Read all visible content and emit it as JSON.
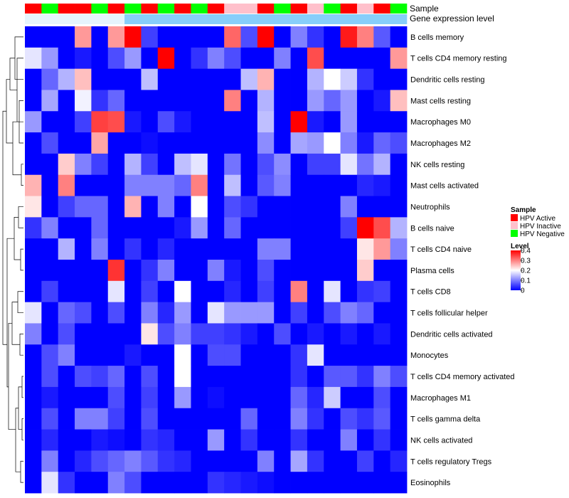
{
  "chart_data": {
    "type": "heatmap",
    "title": "",
    "annotations": {
      "sample_label": "Sample",
      "gene_label": "Gene expression level",
      "sample_groups": [
        "HPV Active",
        "HPV Negative",
        "HPV Active",
        "HPV Active",
        "HPV Negative",
        "HPV Active",
        "HPV Negative",
        "HPV Active",
        "HPV Negative",
        "HPV Active",
        "HPV Negative",
        "HPV Active",
        "HPV Inactive",
        "HPV Inactive",
        "HPV Active",
        "HPV Negative",
        "HPV Active",
        "HPV Inactive",
        "HPV Negative",
        "HPV Active",
        "HPV Inactive",
        "HPV Active",
        "HPV Negative"
      ],
      "gene_levels": [
        "low",
        "low",
        "low",
        "low",
        "low",
        "low",
        "high",
        "high",
        "high",
        "high",
        "high",
        "high",
        "high",
        "high",
        "high",
        "high",
        "high",
        "high",
        "high",
        "high",
        "high",
        "high",
        "high"
      ]
    },
    "rows": [
      "B cells memory",
      "T cells CD4 memory resting",
      "Dendritic cells resting",
      "Mast cells resting",
      "Macrophages M0",
      "Macrophages M2",
      "NK cells resting",
      "Mast cells activated",
      "Neutrophils",
      "B cells naive",
      "T cells CD4 naive",
      "Plasma cells",
      "T cells CD8",
      "T cells follicular helper",
      "Dendritic cells activated",
      "Monocytes",
      "T cells CD4 memory activated",
      "Macrophages M1",
      "T cells gamma delta",
      "NK cells activated",
      "T cells regulatory  Tregs",
      "Eosinophils"
    ],
    "values": [
      [
        0,
        0,
        0,
        0.28,
        0,
        0.28,
        0.4,
        0.05,
        0,
        0,
        0,
        0,
        0.32,
        0.06,
        0.4,
        0,
        0.1,
        0.04,
        0,
        0.38,
        0.3,
        0.07,
        0
      ],
      [
        0.18,
        0.12,
        0,
        0.02,
        0,
        0.06,
        0.12,
        0,
        0.4,
        0,
        0.04,
        0.1,
        0.06,
        0,
        0,
        0.1,
        0,
        0.34,
        0,
        0,
        0,
        0,
        0.28
      ],
      [
        0,
        0.08,
        0.14,
        0.25,
        0,
        0,
        0,
        0.15,
        0,
        0,
        0,
        0,
        0,
        0.15,
        0.26,
        0,
        0,
        0.14,
        0.2,
        0.16,
        0.04,
        0,
        0
      ],
      [
        0,
        0.13,
        0,
        0.19,
        0.04,
        0.08,
        0,
        0,
        0,
        0,
        0,
        0,
        0.3,
        0,
        0.14,
        0,
        0,
        0.12,
        0.08,
        0.12,
        0,
        0.02,
        0.25
      ],
      [
        0.12,
        0,
        0,
        0.05,
        0.35,
        0.34,
        0.02,
        0,
        0.06,
        0.02,
        0,
        0,
        0,
        0,
        0.15,
        0,
        0.4,
        0.02,
        0,
        0.12,
        0,
        0,
        0
      ],
      [
        0,
        0.06,
        0,
        0,
        0.27,
        0,
        0,
        0.01,
        0,
        0,
        0,
        0,
        0,
        0,
        0.11,
        0,
        0.13,
        0.12,
        0.2,
        0.1,
        0.02,
        0.08,
        0.06
      ],
      [
        0,
        0,
        0.24,
        0.1,
        0.05,
        0,
        0.14,
        0.05,
        0,
        0.15,
        0.18,
        0,
        0.09,
        0,
        0.06,
        0.11,
        0,
        0.05,
        0.05,
        0.18,
        0.09,
        0.14,
        0
      ],
      [
        0.26,
        0,
        0.3,
        0,
        0,
        0,
        0.1,
        0.1,
        0.1,
        0.08,
        0.3,
        0,
        0.15,
        0,
        0.07,
        0.1,
        0,
        0,
        0,
        0,
        0.03,
        0.02,
        0
      ],
      [
        0.22,
        0,
        0.05,
        0.08,
        0.08,
        0,
        0.26,
        0,
        0.1,
        0,
        0.2,
        0,
        0.06,
        0.04,
        0,
        0,
        0,
        0,
        0,
        0.1,
        0,
        0,
        0
      ],
      [
        0.04,
        0.1,
        0,
        0,
        0.08,
        0,
        0,
        0,
        0,
        0.02,
        0.12,
        0,
        0.08,
        0,
        0,
        0,
        0,
        0,
        0,
        0.05,
        0.4,
        0.34,
        0.14
      ],
      [
        0,
        0,
        0.14,
        0,
        0.1,
        0,
        0.04,
        0,
        0.03,
        0,
        0,
        0,
        0,
        0,
        0.1,
        0.1,
        0,
        0,
        0,
        0,
        0.22,
        0.28,
        0.1
      ],
      [
        0,
        0,
        0,
        0,
        0,
        0.36,
        0,
        0.04,
        0.1,
        0,
        0,
        0.1,
        0.02,
        0,
        0.06,
        0,
        0,
        0,
        0,
        0,
        0.24,
        0,
        0
      ],
      [
        0,
        0.05,
        0,
        0,
        0,
        0.18,
        0,
        0.05,
        0,
        0.2,
        0,
        0,
        0.03,
        0,
        0.05,
        0,
        0.3,
        0,
        0.18,
        0,
        0.04,
        0.05,
        0
      ],
      [
        0.18,
        0,
        0.08,
        0.06,
        0,
        0.06,
        0,
        0.1,
        0.03,
        0.12,
        0,
        0.18,
        0.12,
        0.12,
        0.12,
        0,
        0.05,
        0,
        0.06,
        0.1,
        0.08,
        0,
        0
      ],
      [
        0.1,
        0,
        0.06,
        0,
        0,
        0,
        0,
        0.22,
        0.06,
        0.1,
        0.05,
        0.05,
        0.04,
        0.02,
        0,
        0.06,
        0,
        0.02,
        0,
        0.02,
        0,
        0.02,
        0
      ],
      [
        0,
        0.06,
        0.1,
        0,
        0,
        0,
        0.02,
        0,
        0,
        0.2,
        0,
        0.06,
        0.06,
        0,
        0,
        0,
        0.04,
        0.18,
        0,
        0,
        0,
        0,
        0
      ],
      [
        0,
        0.06,
        0,
        0.06,
        0.05,
        0.08,
        0,
        0.06,
        0,
        0.2,
        0,
        0,
        0,
        0,
        0,
        0,
        0.04,
        0,
        0.07,
        0.07,
        0.04,
        0.1,
        0.06
      ],
      [
        0,
        0.02,
        0,
        0,
        0,
        0.06,
        0,
        0.05,
        0,
        0.12,
        0,
        0.01,
        0,
        0,
        0,
        0,
        0.08,
        0.03,
        0.16,
        0,
        0,
        0.06,
        0
      ],
      [
        0,
        0.06,
        0,
        0.1,
        0.1,
        0.05,
        0,
        0.06,
        0,
        0,
        0,
        0,
        0,
        0.08,
        0,
        0,
        0.1,
        0.04,
        0,
        0.06,
        0.04,
        0.07,
        0
      ],
      [
        0,
        0.03,
        0,
        0,
        0.02,
        0.01,
        0,
        0.04,
        0.03,
        0,
        0,
        0.12,
        0,
        0.04,
        0,
        0,
        0.04,
        0,
        0,
        0.1,
        0,
        0.04,
        0
      ],
      [
        0,
        0.1,
        0,
        0.03,
        0.06,
        0.08,
        0.1,
        0.07,
        0.04,
        0.03,
        0,
        0,
        0,
        0,
        0.1,
        0,
        0.13,
        0.04,
        0,
        0,
        0.05,
        0,
        0.03
      ],
      [
        0,
        0.18,
        0.04,
        0,
        0,
        0.1,
        0.06,
        0,
        0,
        0,
        0,
        0.04,
        0.03,
        0.02,
        0.01,
        0,
        0,
        0,
        0,
        0,
        0,
        0,
        0
      ]
    ],
    "color_scale": {
      "min": 0,
      "max": 0.4,
      "low": "#0000ff",
      "mid": "#ffffff",
      "high": "#ff0000"
    },
    "legend": {
      "sample_title": "Sample",
      "sample_entries": [
        {
          "label": "HPV Active",
          "color": "#ff0000"
        },
        {
          "label": "HPV Inactive",
          "color": "#ffc0cb"
        },
        {
          "label": "HPV Negative",
          "color": "#00ff00"
        }
      ],
      "level_title": "Level",
      "level_ticks": [
        0.4,
        0.3,
        0.2,
        0.1,
        0
      ]
    },
    "gene_level_colors": {
      "low": "#e6f4fd",
      "high": "#87cefa"
    }
  }
}
